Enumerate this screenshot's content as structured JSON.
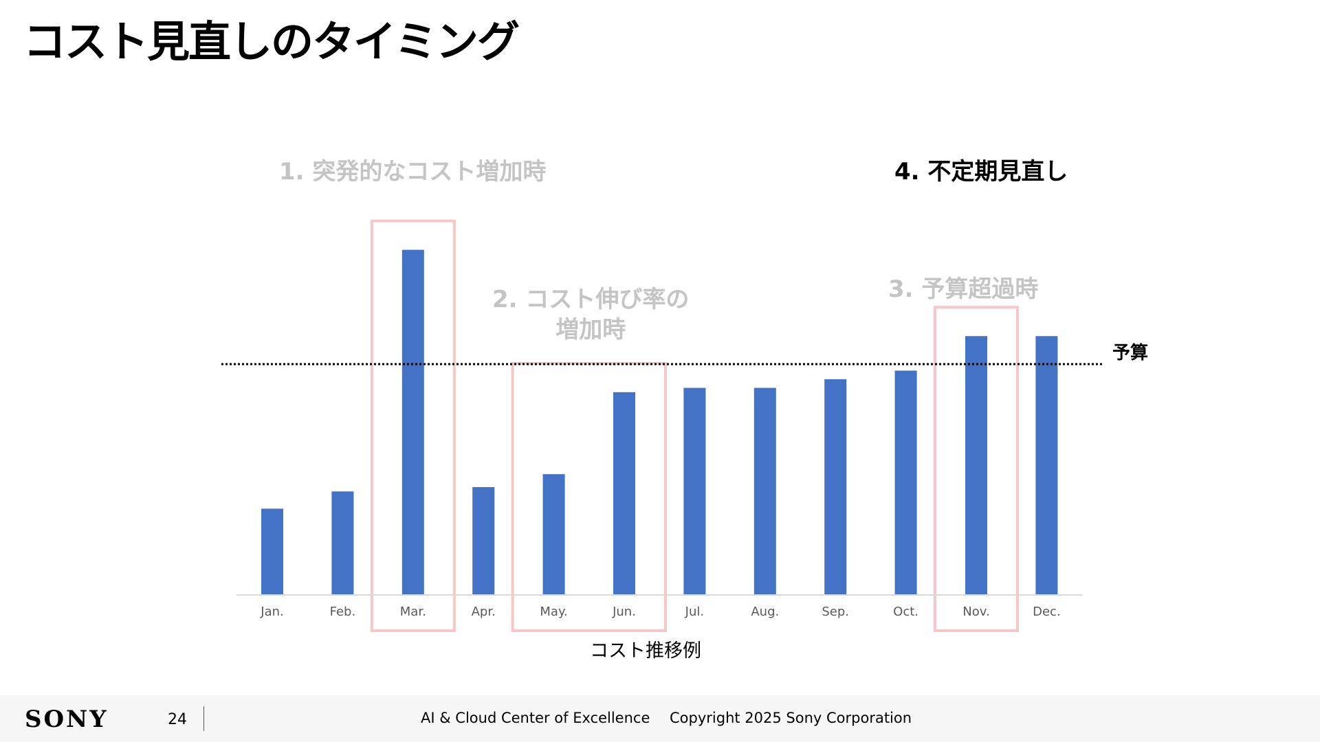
{
  "title": "コスト見直しのタイミング",
  "annotations": {
    "a1": "1. 突発的なコスト増加時",
    "a2_line1": "2. コスト伸び率の",
    "a2_line2": "増加時",
    "a3": "3. 予算超過時",
    "a4": "4. 不定期見直し"
  },
  "chart_data": {
    "type": "bar",
    "categories": [
      "Jan.",
      "Feb.",
      "Mar.",
      "Apr.",
      "May.",
      "Jun.",
      "Jul.",
      "Aug.",
      "Sep.",
      "Oct.",
      "Nov.",
      "Dec."
    ],
    "values": [
      20,
      24,
      80,
      25,
      28,
      47,
      48,
      48,
      50,
      52,
      60,
      60
    ],
    "budget": 53.5,
    "budget_label": "予算",
    "ylim": [
      0,
      100
    ],
    "caption": "コスト推移例",
    "colors": {
      "bar": "#4472c4",
      "highlight": "#f7c6c7",
      "budget_line": "#000000"
    },
    "highlight_groups": [
      [
        "Mar."
      ],
      [
        "May.",
        "Jun."
      ],
      [
        "Nov."
      ]
    ]
  },
  "footer": {
    "logo": "SONY",
    "page_number": "24",
    "organization": "AI & Cloud Center of Excellence",
    "copyright": "Copyright 2025 Sony Corporation"
  }
}
